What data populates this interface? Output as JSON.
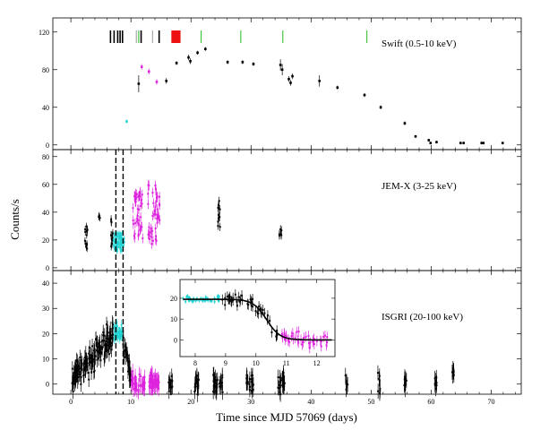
{
  "colors": {
    "black": "#000000",
    "cyan": "#22d3d3",
    "magenta": "#dd22dd",
    "green": "#22bb22",
    "gray": "#999999",
    "red": "#ee1111"
  },
  "chart_data": {
    "type": "scatter",
    "xlabel": "Time since MJD 57069 (days)",
    "ylabel": "Counts/s",
    "xlim": [
      -3,
      75
    ],
    "xticks": [
      0,
      10,
      20,
      30,
      40,
      50,
      60,
      70
    ],
    "dashed_vlines": [
      7.5,
      8.7
    ],
    "panels": [
      {
        "name": "swift",
        "label": "Swift (0.5-10 keV)",
        "ylim": [
          -5,
          135
        ],
        "yticks": [
          0,
          40,
          80,
          120
        ],
        "obs_marks": [
          {
            "x": 6.6,
            "color": "black"
          },
          {
            "x": 7.2,
            "color": "black"
          },
          {
            "x": 7.8,
            "color": "black"
          },
          {
            "x": 8.2,
            "color": "black"
          },
          {
            "x": 8.6,
            "color": "black"
          },
          {
            "x": 10.9,
            "color": "gray"
          },
          {
            "x": 11.3,
            "color": "green"
          },
          {
            "x": 11.7,
            "color": "black"
          },
          {
            "x": 13.6,
            "color": "gray"
          },
          {
            "x": 14.7,
            "color": "black"
          },
          {
            "x": 16.9,
            "color": "red"
          },
          {
            "x": 17.2,
            "color": "red"
          },
          {
            "x": 17.5,
            "color": "red"
          },
          {
            "x": 17.8,
            "color": "red"
          },
          {
            "x": 18.1,
            "color": "red"
          },
          {
            "x": 21.7,
            "color": "green"
          },
          {
            "x": 28.3,
            "color": "green"
          },
          {
            "x": 35.3,
            "color": "green"
          },
          {
            "x": 49.3,
            "color": "green"
          }
        ],
        "points": [
          {
            "x": 9.3,
            "y": 25,
            "err": 2,
            "color": "cyan"
          },
          {
            "x": 11.3,
            "y": 65,
            "err": 9,
            "color": "black"
          },
          {
            "x": 11.8,
            "y": 83,
            "err": 3,
            "color": "magenta"
          },
          {
            "x": 13.0,
            "y": 78,
            "err": 3,
            "color": "magenta"
          },
          {
            "x": 14.3,
            "y": 67,
            "err": 3,
            "color": "magenta"
          },
          {
            "x": 15.9,
            "y": 68,
            "err": 3,
            "color": "black"
          },
          {
            "x": 17.6,
            "y": 87,
            "err": 2,
            "color": "black"
          },
          {
            "x": 19.6,
            "y": 93,
            "err": 3,
            "color": "black"
          },
          {
            "x": 19.9,
            "y": 89,
            "err": 3,
            "color": "black"
          },
          {
            "x": 21.1,
            "y": 98,
            "err": 2,
            "color": "black"
          },
          {
            "x": 22.4,
            "y": 102,
            "err": 2,
            "color": "black"
          },
          {
            "x": 26.1,
            "y": 88,
            "err": 2,
            "color": "black"
          },
          {
            "x": 28.6,
            "y": 88,
            "err": 2,
            "color": "black"
          },
          {
            "x": 30.4,
            "y": 86,
            "err": 2,
            "color": "black"
          },
          {
            "x": 34.9,
            "y": 85,
            "err": 6,
            "color": "black"
          },
          {
            "x": 35.2,
            "y": 80,
            "err": 6,
            "color": "black"
          },
          {
            "x": 36.3,
            "y": 70,
            "err": 3,
            "color": "black"
          },
          {
            "x": 36.6,
            "y": 66,
            "err": 3,
            "color": "black"
          },
          {
            "x": 36.9,
            "y": 73,
            "err": 3,
            "color": "black"
          },
          {
            "x": 41.4,
            "y": 68,
            "err": 6,
            "color": "black"
          },
          {
            "x": 44.4,
            "y": 61,
            "err": 2,
            "color": "black"
          },
          {
            "x": 48.9,
            "y": 53,
            "err": 2,
            "color": "black"
          },
          {
            "x": 51.6,
            "y": 40,
            "err": 2,
            "color": "black"
          },
          {
            "x": 55.6,
            "y": 23,
            "err": 2,
            "color": "black"
          },
          {
            "x": 57.4,
            "y": 9,
            "err": 1,
            "color": "black"
          },
          {
            "x": 59.6,
            "y": 5,
            "err": 1,
            "color": "black"
          },
          {
            "x": 59.9,
            "y": 2,
            "err": 1,
            "color": "black"
          },
          {
            "x": 60.9,
            "y": 3,
            "err": 1,
            "color": "black"
          },
          {
            "x": 64.9,
            "y": 2,
            "err": 1,
            "color": "black"
          },
          {
            "x": 65.4,
            "y": 2,
            "err": 1,
            "color": "black"
          },
          {
            "x": 68.4,
            "y": 2,
            "err": 1,
            "color": "black"
          },
          {
            "x": 68.7,
            "y": 2,
            "err": 1,
            "color": "black"
          },
          {
            "x": 71.9,
            "y": 2,
            "err": 1,
            "color": "black"
          }
        ]
      },
      {
        "name": "jemx",
        "label": "JEM-X (3-25 keV)",
        "ylim": [
          -2,
          85
        ],
        "yticks": [
          0,
          20,
          40,
          60,
          80
        ],
        "clusters": [
          {
            "x0": 2.3,
            "x1": 2.8,
            "ymin": 10,
            "ymax": 30,
            "n": 14,
            "err": 2.5,
            "color": "black"
          },
          {
            "x0": 4.6,
            "x1": 4.9,
            "ymin": 35,
            "ymax": 40,
            "n": 4,
            "err": 2.5,
            "color": "black"
          },
          {
            "x0": 6.5,
            "x1": 7.0,
            "ymin": 15,
            "ymax": 36,
            "n": 12,
            "err": 3,
            "color": "black"
          },
          {
            "x0": 7.1,
            "x1": 8.9,
            "ymin": 12,
            "ymax": 25,
            "n": 70,
            "err": 2,
            "color": "cyan"
          },
          {
            "x0": 10.3,
            "x1": 12.0,
            "ymin": 20,
            "ymax": 55,
            "n": 40,
            "err": 3.5,
            "color": "magenta"
          },
          {
            "x0": 12.8,
            "x1": 14.8,
            "ymin": 17,
            "ymax": 60,
            "n": 45,
            "err": 3.5,
            "color": "magenta"
          },
          {
            "x0": 24.5,
            "x1": 24.9,
            "ymin": 27,
            "ymax": 50,
            "n": 12,
            "err": 3,
            "color": "black"
          },
          {
            "x0": 34.7,
            "x1": 35.1,
            "ymin": 23,
            "ymax": 28,
            "n": 6,
            "err": 3,
            "color": "black"
          }
        ]
      },
      {
        "name": "isgri",
        "label": "ISGRI (20-100 keV)",
        "ylim": [
          -4,
          45
        ],
        "yticks": [
          0,
          10,
          20,
          30,
          40
        ],
        "segments": [
          {
            "x0": 0.2,
            "x1": 7.2,
            "y0": 2,
            "y1": 20,
            "scatter": 4,
            "n": 170,
            "err": 3,
            "color": "black"
          },
          {
            "x0": 7.2,
            "x1": 8.7,
            "y0": 20,
            "y1": 20,
            "scatter": 2,
            "n": 40,
            "err": 2,
            "color": "cyan"
          },
          {
            "x0": 8.7,
            "x1": 10.0,
            "y0": 18,
            "y1": 3,
            "scatter": 3,
            "n": 30,
            "err": 3,
            "color": "black"
          },
          {
            "x0": 10.0,
            "x1": 12.4,
            "y0": 0.5,
            "y1": 0.5,
            "scatter": 2.5,
            "n": 40,
            "err": 3,
            "color": "magenta"
          },
          {
            "x0": 13.0,
            "x1": 14.7,
            "y0": 0.5,
            "y1": 0.5,
            "scatter": 2.5,
            "n": 40,
            "err": 3,
            "color": "magenta"
          },
          {
            "x0": 16.2,
            "x1": 17.0,
            "y0": 0,
            "y1": 0,
            "scatter": 2.5,
            "n": 12,
            "err": 3,
            "color": "black"
          },
          {
            "x0": 20.6,
            "x1": 21.4,
            "y0": 0,
            "y1": 0,
            "scatter": 3,
            "n": 16,
            "err": 3,
            "color": "black"
          },
          {
            "x0": 23.7,
            "x1": 25.3,
            "y0": 0,
            "y1": 0,
            "scatter": 3,
            "n": 30,
            "err": 3,
            "color": "black"
          },
          {
            "x0": 29.2,
            "x1": 30.4,
            "y0": 0,
            "y1": 0,
            "scatter": 3,
            "n": 22,
            "err": 3,
            "color": "black"
          },
          {
            "x0": 34.5,
            "x1": 35.6,
            "y0": 0,
            "y1": 0,
            "scatter": 3,
            "n": 22,
            "err": 3,
            "color": "black"
          },
          {
            "x0": 45.7,
            "x1": 46.1,
            "y0": 0,
            "y1": 0,
            "scatter": 3,
            "n": 8,
            "err": 3,
            "color": "black"
          },
          {
            "x0": 51.1,
            "x1": 51.5,
            "y0": -1,
            "y1": -1,
            "scatter": 3,
            "n": 8,
            "err": 3,
            "color": "black"
          },
          {
            "x0": 55.5,
            "x1": 55.9,
            "y0": 0,
            "y1": 0,
            "scatter": 3,
            "n": 8,
            "err": 3,
            "color": "black"
          },
          {
            "x0": 60.6,
            "x1": 61.0,
            "y0": 0,
            "y1": 0,
            "scatter": 3,
            "n": 8,
            "err": 3,
            "color": "black"
          },
          {
            "x0": 63.4,
            "x1": 63.8,
            "y0": 5,
            "y1": 5,
            "scatter": 2,
            "n": 8,
            "err": 3,
            "color": "black"
          }
        ]
      }
    ],
    "inset": {
      "xlim": [
        7.5,
        12.6
      ],
      "ylim": [
        -8,
        29
      ],
      "xticks": [
        8,
        9,
        10,
        11,
        12
      ],
      "yticks": [
        -10,
        0,
        10,
        20
      ],
      "model": {
        "plateau": 19.5,
        "floor": 0,
        "x_mid": 10.35,
        "width": 0.22
      },
      "segments": [
        {
          "x0": 7.6,
          "x1": 8.8,
          "color": "cyan",
          "n": 45,
          "scatter": 1.0,
          "err": 1.0
        },
        {
          "x0": 8.8,
          "x1": 10.8,
          "color": "black",
          "n": 45,
          "scatter": 2.5,
          "err": 2.5
        },
        {
          "x0": 10.8,
          "x1": 12.4,
          "color": "magenta",
          "n": 40,
          "scatter": 2.5,
          "err": 2.5
        }
      ]
    }
  }
}
